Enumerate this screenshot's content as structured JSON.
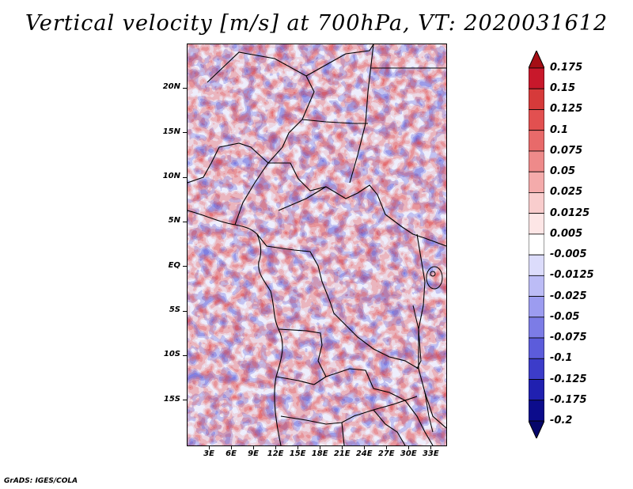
{
  "title": "Vertical velocity [m/s] at 700hPa, VT: 2020031612",
  "credit": "GrADS: IGES/COLA",
  "map": {
    "lon_range": [
      0,
      35
    ],
    "lat_range": [
      -20,
      25
    ],
    "lat_labels": [
      "20N",
      "15N",
      "10N",
      "5N",
      "EQ",
      "5S",
      "10S",
      "15S"
    ],
    "lon_labels": [
      "3E",
      "6E",
      "9E",
      "12E",
      "15E",
      "18E",
      "21E",
      "24E",
      "27E",
      "30E",
      "33E"
    ],
    "borders": true
  },
  "colorbar": {
    "labels": [
      "0.175",
      "0.15",
      "0.125",
      "0.1",
      "0.075",
      "0.05",
      "0.025",
      "0.0125",
      "0.005",
      "-0.005",
      "-0.0125",
      "-0.025",
      "-0.05",
      "-0.075",
      "-0.1",
      "-0.125",
      "-0.175",
      "-0.2"
    ],
    "colors": [
      "#a50e15",
      "#c8182b",
      "#d63a3a",
      "#e25050",
      "#e86a6a",
      "#ee8a8a",
      "#f4abab",
      "#f9cdcd",
      "#fde6e6",
      "#ffffff",
      "#dcdcfb",
      "#bcbcf6",
      "#9c9cf0",
      "#7c7ce6",
      "#5c5cdb",
      "#3c3cc9",
      "#2020b0",
      "#0c0c8c",
      "#06066a"
    ]
  }
}
